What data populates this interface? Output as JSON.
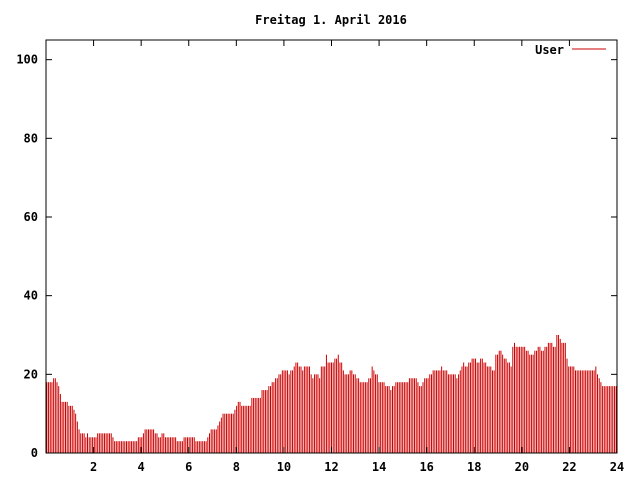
{
  "chart_data": {
    "type": "bar",
    "title": "Freitag 1. April 2016",
    "xlabel": "",
    "ylabel": "",
    "xlim": [
      0,
      24
    ],
    "ylim": [
      0,
      105
    ],
    "x_ticks": [
      2,
      4,
      6,
      8,
      10,
      12,
      14,
      16,
      18,
      20,
      22,
      24
    ],
    "y_ticks": [
      0,
      20,
      40,
      60,
      80,
      100
    ],
    "grid": false,
    "legend_position": "top-right",
    "series": [
      {
        "name": "User",
        "color": "#cc0000",
        "values": [
          18,
          18,
          18,
          18,
          19,
          19,
          18,
          17,
          15,
          13,
          13,
          13,
          13,
          12,
          12,
          12,
          11,
          10,
          8,
          6,
          5,
          5,
          5,
          4,
          5,
          4,
          4,
          4,
          4,
          4,
          5,
          5,
          5,
          5,
          5,
          5,
          5,
          5,
          5,
          4,
          3,
          3,
          3,
          3,
          3,
          3,
          3,
          3,
          3,
          3,
          3,
          3,
          3,
          3,
          4,
          4,
          4,
          5,
          6,
          6,
          6,
          6,
          6,
          6,
          5,
          5,
          4,
          4,
          5,
          5,
          4,
          4,
          4,
          4,
          4,
          4,
          4,
          3,
          3,
          3,
          3,
          4,
          4,
          4,
          4,
          4,
          4,
          4,
          3,
          3,
          3,
          3,
          3,
          3,
          3,
          4,
          5,
          6,
          6,
          6,
          6,
          7,
          8,
          9,
          10,
          10,
          10,
          10,
          10,
          10,
          10,
          11,
          12,
          13,
          13,
          12,
          12,
          12,
          12,
          12,
          12,
          14,
          14,
          14,
          14,
          14,
          14,
          16,
          16,
          16,
          16,
          17,
          17,
          18,
          18,
          19,
          19,
          20,
          20,
          21,
          21,
          21,
          21,
          20,
          21,
          21,
          22,
          23,
          23,
          22,
          22,
          21,
          22,
          22,
          22,
          22,
          20,
          19,
          20,
          20,
          20,
          19,
          22,
          22,
          22,
          25,
          23,
          23,
          23,
          23,
          24,
          24,
          25,
          23,
          23,
          21,
          20,
          20,
          20,
          21,
          21,
          20,
          20,
          19,
          19,
          18,
          18,
          18,
          18,
          18,
          19,
          19,
          22,
          21,
          20,
          20,
          18,
          18,
          18,
          18,
          17,
          17,
          17,
          16,
          17,
          17,
          18,
          18,
          18,
          18,
          18,
          18,
          18,
          18,
          19,
          19,
          19,
          19,
          19,
          18,
          17,
          17,
          18,
          19,
          19,
          19,
          20,
          20,
          21,
          21,
          21,
          21,
          21,
          22,
          21,
          21,
          21,
          20,
          20,
          20,
          20,
          20,
          19,
          20,
          21,
          22,
          23,
          22,
          22,
          23,
          23,
          24,
          24,
          24,
          23,
          23,
          24,
          24,
          23,
          23,
          22,
          22,
          22,
          21,
          21,
          25,
          25,
          26,
          26,
          25,
          24,
          24,
          23,
          23,
          22,
          27,
          28,
          27,
          27,
          27,
          27,
          27,
          27,
          26,
          26,
          25,
          25,
          25,
          26,
          26,
          27,
          27,
          26,
          26,
          27,
          27,
          28,
          28,
          28,
          27,
          27,
          30,
          30,
          29,
          28,
          28,
          28,
          24,
          22,
          22,
          22,
          22,
          21,
          21,
          21,
          21,
          21,
          21,
          21,
          21,
          21,
          21,
          21,
          21,
          22,
          20,
          19,
          18,
          17,
          17,
          17,
          17,
          17,
          17,
          17,
          17,
          17
        ]
      }
    ]
  }
}
